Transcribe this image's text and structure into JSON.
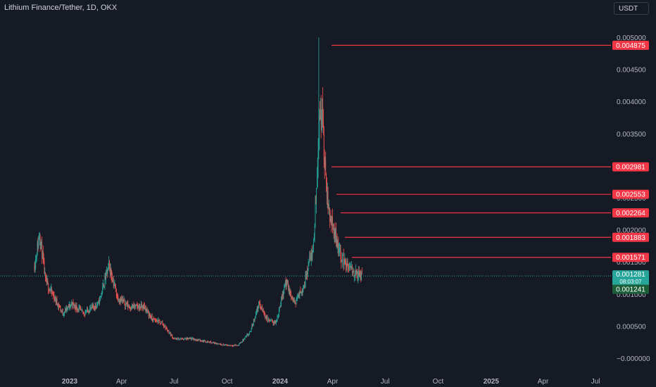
{
  "header": {
    "title": "Lithium Finance/Tether, 1D, OKX",
    "currency": "USDT"
  },
  "colors": {
    "background": "#161a25",
    "up": "#26a69a",
    "down": "#ef5350",
    "level_line": "#f23645",
    "axis_text": "#b2b5be",
    "last_price_line": "#26a69a"
  },
  "chart_data": {
    "type": "candlestick",
    "x_axis_ticks": [
      "2023",
      "Apr",
      "Jul",
      "Oct",
      "2024",
      "Apr",
      "Jul",
      "Oct",
      "2025",
      "Apr",
      "Jul"
    ],
    "y_axis_ticks": [
      "0.005000",
      "0.004500",
      "0.004000",
      "0.003500",
      "0.003000",
      "0.002500",
      "0.002000",
      "0.001500",
      "0.001000",
      "0.000500",
      "−0.000000"
    ],
    "ylim": [
      0,
      0.005
    ],
    "horizontal_levels": [
      {
        "value": 0.004875,
        "label": "0.004875"
      },
      {
        "value": 0.002981,
        "label": "0.002981"
      },
      {
        "value": 0.002553,
        "label": "0.002553"
      },
      {
        "value": 0.002264,
        "label": "0.002264"
      },
      {
        "value": 0.001883,
        "label": "0.001883"
      },
      {
        "value": 0.001571,
        "label": "0.001571"
      }
    ],
    "last_price": {
      "value": 0.001281,
      "label": "0.001281",
      "countdown": "08:03:07"
    },
    "low_marker": {
      "value": 0.001241,
      "label": "0.001241"
    },
    "price_path": [
      {
        "date": "2022-11-01",
        "price": 0.00145
      },
      {
        "date": "2022-11-10",
        "price": 0.00195
      },
      {
        "date": "2022-11-20",
        "price": 0.0012
      },
      {
        "date": "2022-12-05",
        "price": 0.00095
      },
      {
        "date": "2022-12-20",
        "price": 0.0007
      },
      {
        "date": "2023-01-05",
        "price": 0.00085
      },
      {
        "date": "2023-01-25",
        "price": 0.0007
      },
      {
        "date": "2023-02-20",
        "price": 0.00085
      },
      {
        "date": "2023-03-10",
        "price": 0.00145
      },
      {
        "date": "2023-03-25",
        "price": 0.00095
      },
      {
        "date": "2023-04-15",
        "price": 0.0008
      },
      {
        "date": "2023-05-10",
        "price": 0.0008
      },
      {
        "date": "2023-05-25",
        "price": 0.0006
      },
      {
        "date": "2023-06-10",
        "price": 0.00055
      },
      {
        "date": "2023-07-01",
        "price": 0.0003
      },
      {
        "date": "2023-08-01",
        "price": 0.0003
      },
      {
        "date": "2023-09-01",
        "price": 0.00025
      },
      {
        "date": "2023-10-01",
        "price": 0.0002
      },
      {
        "date": "2023-10-20",
        "price": 0.0002
      },
      {
        "date": "2023-11-10",
        "price": 0.0004
      },
      {
        "date": "2023-11-25",
        "price": 0.00085
      },
      {
        "date": "2023-12-10",
        "price": 0.0006
      },
      {
        "date": "2023-12-25",
        "price": 0.00055
      },
      {
        "date": "2024-01-10",
        "price": 0.0012
      },
      {
        "date": "2024-01-25",
        "price": 0.00085
      },
      {
        "date": "2024-02-10",
        "price": 0.0011
      },
      {
        "date": "2024-02-20",
        "price": 0.0015
      },
      {
        "date": "2024-02-28",
        "price": 0.00175
      },
      {
        "date": "2024-03-05",
        "price": 0.0029
      },
      {
        "date": "2024-03-10",
        "price": 0.0038
      },
      {
        "date": "2024-03-14",
        "price": 0.0039
      },
      {
        "date": "2024-03-18",
        "price": 0.003
      },
      {
        "date": "2024-03-25",
        "price": 0.0023
      },
      {
        "date": "2024-04-05",
        "price": 0.00195
      },
      {
        "date": "2024-04-15",
        "price": 0.0016
      },
      {
        "date": "2024-04-25",
        "price": 0.00145
      },
      {
        "date": "2024-05-05",
        "price": 0.00135
      },
      {
        "date": "2024-05-15",
        "price": 0.0013
      },
      {
        "date": "2024-05-22",
        "price": 0.00128
      }
    ],
    "spike_highs": [
      {
        "date": "2024-03-08",
        "high": 0.005
      },
      {
        "date": "2024-03-14",
        "high": 0.00405
      }
    ],
    "grid": false
  }
}
